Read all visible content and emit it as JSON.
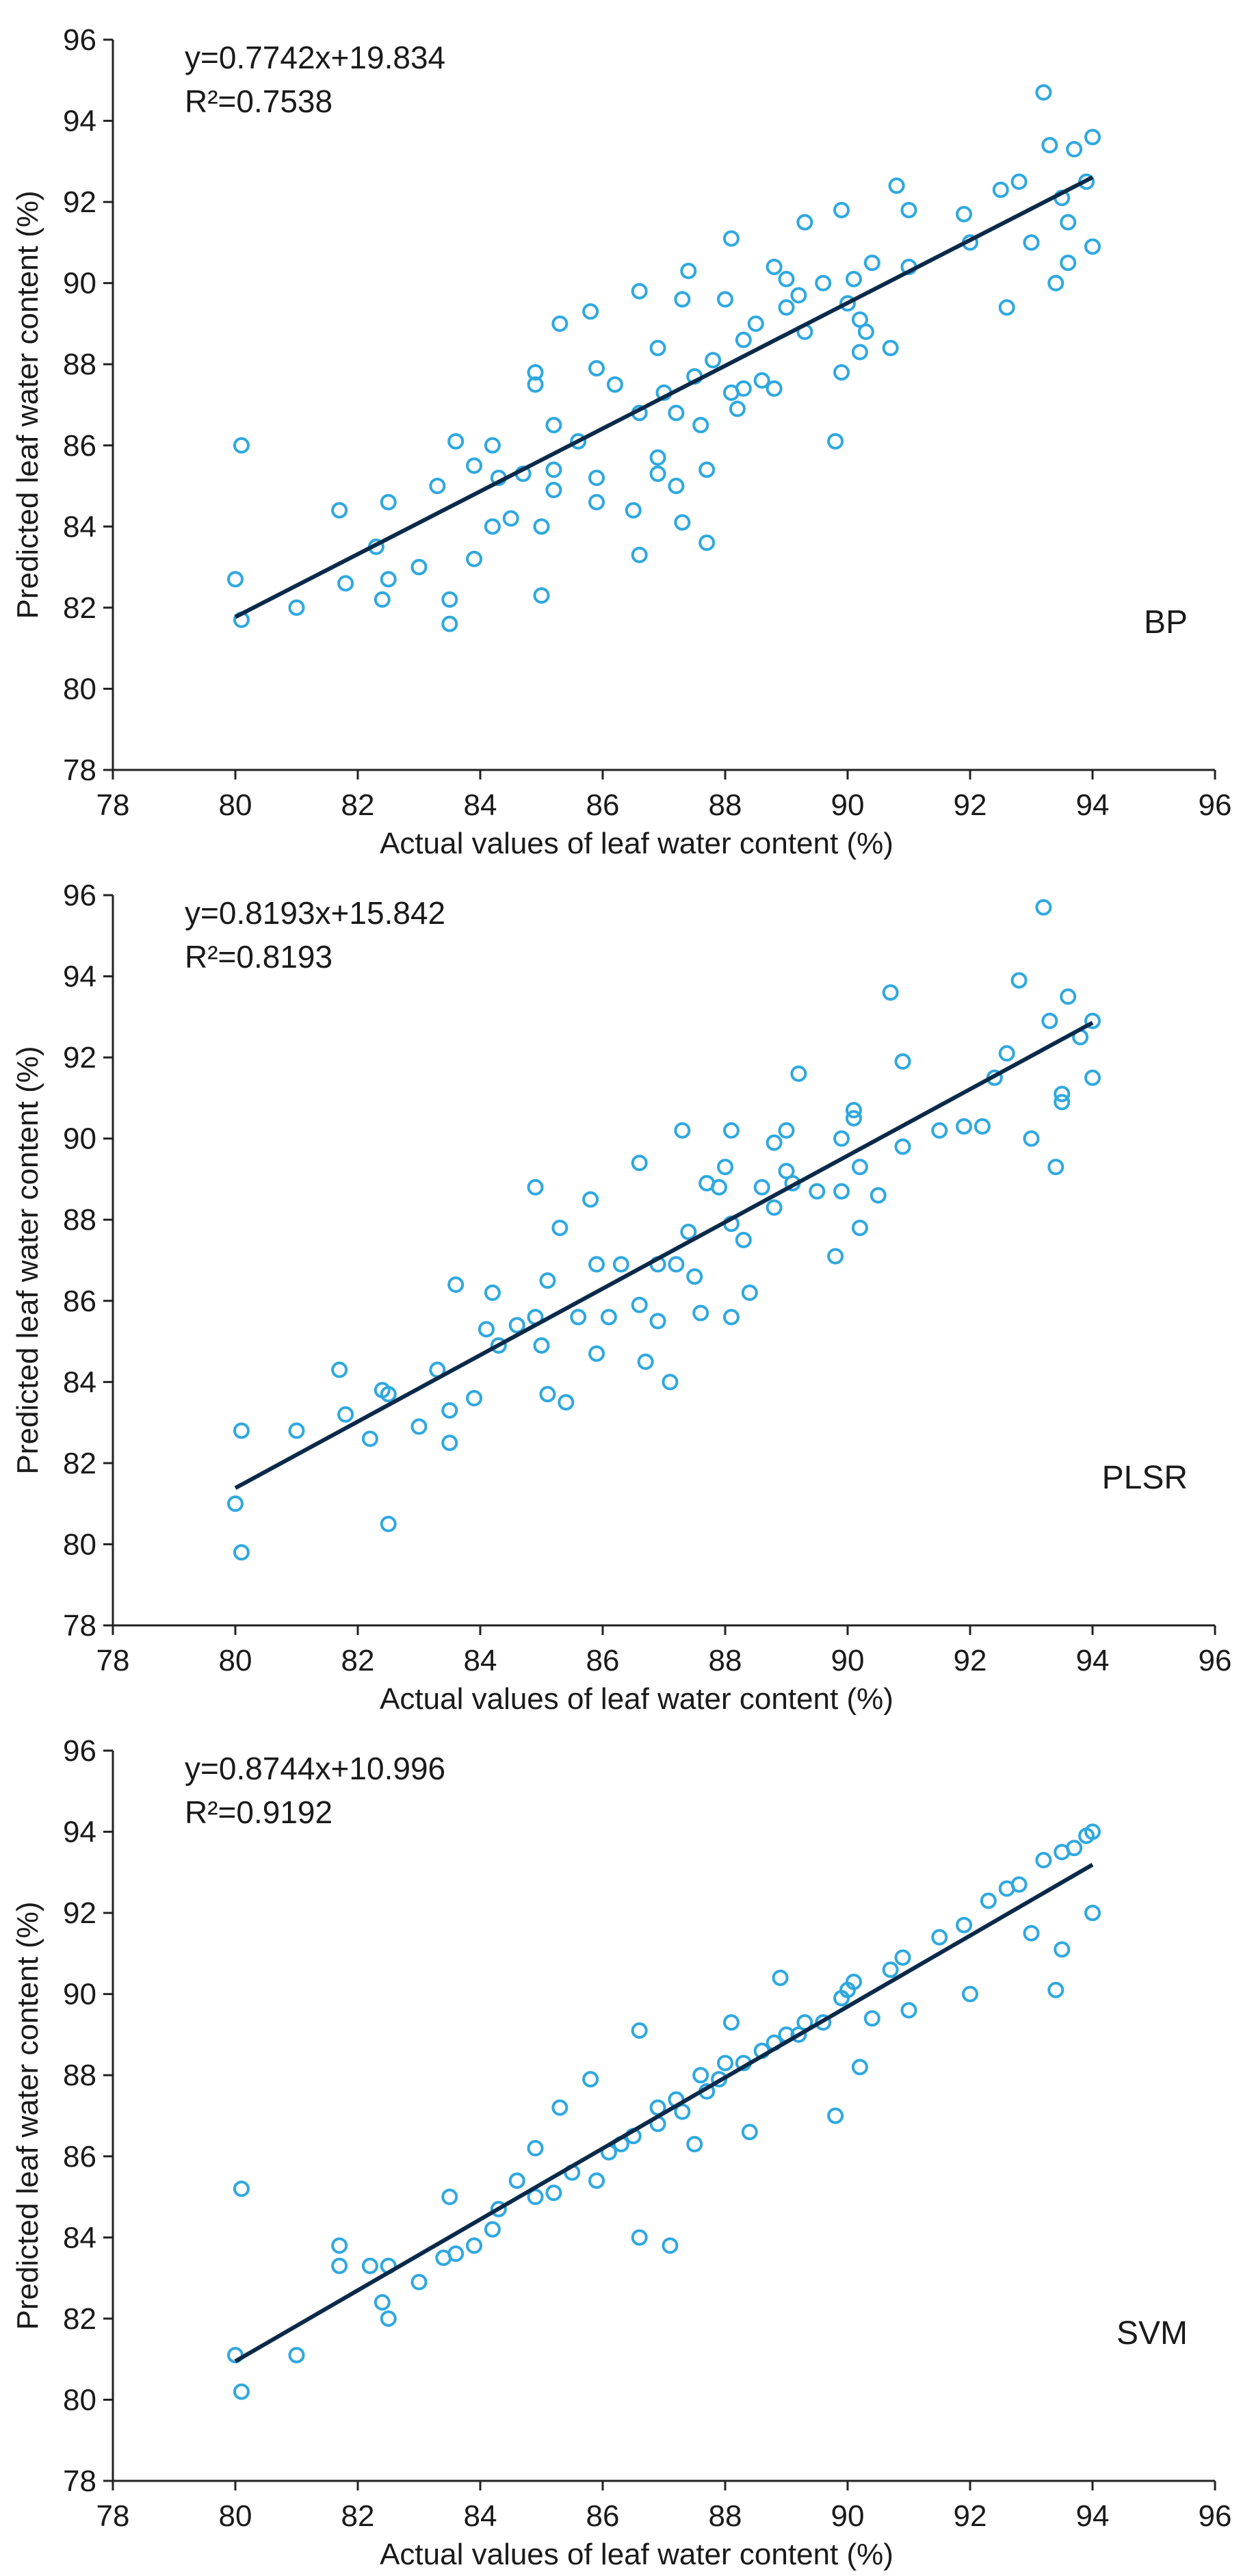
{
  "figure_description_panels": 3,
  "chart_data": [
    {
      "type": "scatter",
      "panel_label": "BP",
      "equation": "y=0.7742x+19.834",
      "r_squared": "R²=0.7538",
      "fit": {
        "slope": 0.7742,
        "intercept": 19.834,
        "x_range": [
          80,
          94
        ]
      },
      "xlabel": "Actual values of leaf water content (%)",
      "ylabel": "Predicted leaf water content (%)",
      "xlim": [
        78,
        96
      ],
      "ylim": [
        78,
        96
      ],
      "xticks": [
        "78",
        "80",
        "82",
        "84",
        "86",
        "88",
        "90",
        "92",
        "94",
        "96"
      ],
      "yticks": [
        "78",
        "80",
        "82",
        "84",
        "86",
        "88",
        "90",
        "92",
        "94",
        "96"
      ],
      "colors": {
        "points": "#2fa8df",
        "line": "#0b2a4a"
      },
      "points": [
        [
          80.0,
          82.7
        ],
        [
          80.1,
          86.0
        ],
        [
          80.1,
          81.7
        ],
        [
          81.0,
          82.0
        ],
        [
          81.7,
          84.4
        ],
        [
          81.8,
          82.6
        ],
        [
          82.3,
          83.5
        ],
        [
          82.4,
          82.2
        ],
        [
          82.5,
          84.6
        ],
        [
          82.5,
          82.7
        ],
        [
          83.0,
          83.0
        ],
        [
          83.3,
          85.0
        ],
        [
          83.5,
          82.2
        ],
        [
          83.5,
          81.6
        ],
        [
          83.6,
          86.1
        ],
        [
          83.9,
          85.5
        ],
        [
          83.9,
          83.2
        ],
        [
          84.2,
          86.0
        ],
        [
          84.2,
          84.0
        ],
        [
          84.3,
          85.2
        ],
        [
          84.5,
          84.2
        ],
        [
          84.7,
          85.3
        ],
        [
          84.9,
          87.8
        ],
        [
          84.9,
          87.5
        ],
        [
          85.0,
          84.0
        ],
        [
          85.0,
          82.3
        ],
        [
          85.2,
          86.5
        ],
        [
          85.2,
          85.4
        ],
        [
          85.2,
          84.9
        ],
        [
          85.3,
          89.0
        ],
        [
          85.6,
          86.1
        ],
        [
          85.8,
          89.3
        ],
        [
          85.9,
          85.2
        ],
        [
          85.9,
          84.6
        ],
        [
          85.9,
          87.9
        ],
        [
          86.2,
          87.5
        ],
        [
          86.5,
          84.4
        ],
        [
          86.6,
          89.8
        ],
        [
          86.6,
          86.8
        ],
        [
          86.6,
          83.3
        ],
        [
          86.9,
          88.4
        ],
        [
          86.9,
          85.7
        ],
        [
          86.9,
          85.3
        ],
        [
          87.0,
          87.3
        ],
        [
          87.2,
          86.8
        ],
        [
          87.2,
          85.0
        ],
        [
          87.3,
          84.1
        ],
        [
          87.3,
          89.6
        ],
        [
          87.4,
          90.3
        ],
        [
          87.5,
          87.7
        ],
        [
          87.6,
          86.5
        ],
        [
          87.7,
          85.4
        ],
        [
          87.7,
          83.6
        ],
        [
          87.8,
          88.1
        ],
        [
          88.0,
          89.6
        ],
        [
          88.1,
          87.3
        ],
        [
          88.1,
          91.1
        ],
        [
          88.2,
          86.9
        ],
        [
          88.3,
          88.6
        ],
        [
          88.3,
          87.4
        ],
        [
          88.5,
          89.0
        ],
        [
          88.6,
          87.6
        ],
        [
          88.8,
          90.4
        ],
        [
          88.8,
          87.4
        ],
        [
          89.0,
          90.1
        ],
        [
          89.0,
          89.4
        ],
        [
          89.2,
          89.7
        ],
        [
          89.3,
          91.5
        ],
        [
          89.3,
          88.8
        ],
        [
          89.6,
          90.0
        ],
        [
          89.8,
          86.1
        ],
        [
          89.9,
          87.8
        ],
        [
          89.9,
          91.8
        ],
        [
          90.0,
          89.5
        ],
        [
          90.1,
          90.1
        ],
        [
          90.2,
          88.3
        ],
        [
          90.2,
          89.1
        ],
        [
          90.3,
          88.8
        ],
        [
          90.4,
          90.5
        ],
        [
          90.7,
          88.4
        ],
        [
          90.8,
          92.4
        ],
        [
          91.0,
          91.8
        ],
        [
          91.0,
          90.4
        ],
        [
          91.9,
          91.7
        ],
        [
          92.0,
          91.0
        ],
        [
          92.5,
          92.3
        ],
        [
          92.6,
          89.4
        ],
        [
          92.8,
          92.5
        ],
        [
          93.0,
          91.0
        ],
        [
          93.2,
          94.7
        ],
        [
          93.3,
          93.4
        ],
        [
          93.4,
          90.0
        ],
        [
          93.5,
          92.1
        ],
        [
          93.6,
          91.5
        ],
        [
          93.6,
          90.5
        ],
        [
          93.7,
          93.3
        ],
        [
          93.9,
          92.5
        ],
        [
          94.0,
          93.6
        ],
        [
          94.0,
          90.9
        ]
      ]
    },
    {
      "type": "scatter",
      "panel_label": "PLSR",
      "equation": "y=0.8193x+15.842",
      "r_squared": "R²=0.8193",
      "fit": {
        "slope": 0.8193,
        "intercept": 15.842,
        "x_range": [
          80,
          94
        ]
      },
      "xlabel": "Actual values of leaf water content (%)",
      "ylabel": "Predicted leaf water content (%)",
      "xlim": [
        78,
        96
      ],
      "ylim": [
        78,
        96
      ],
      "xticks": [
        "78",
        "80",
        "82",
        "84",
        "86",
        "88",
        "90",
        "92",
        "94",
        "96"
      ],
      "yticks": [
        "78",
        "80",
        "82",
        "84",
        "86",
        "88",
        "90",
        "92",
        "94",
        "96"
      ],
      "colors": {
        "points": "#2fa8df",
        "line": "#0b2a4a"
      },
      "points": [
        [
          80.0,
          81.0
        ],
        [
          80.1,
          82.8
        ],
        [
          80.1,
          79.8
        ],
        [
          81.0,
          82.8
        ],
        [
          81.7,
          84.3
        ],
        [
          81.8,
          83.2
        ],
        [
          82.2,
          82.6
        ],
        [
          82.4,
          83.8
        ],
        [
          82.5,
          83.7
        ],
        [
          82.5,
          80.5
        ],
        [
          83.0,
          82.9
        ],
        [
          83.3,
          84.3
        ],
        [
          83.5,
          83.3
        ],
        [
          83.5,
          82.5
        ],
        [
          83.6,
          86.4
        ],
        [
          83.9,
          83.6
        ],
        [
          84.1,
          85.3
        ],
        [
          84.2,
          86.2
        ],
        [
          84.3,
          84.9
        ],
        [
          84.6,
          85.4
        ],
        [
          84.9,
          88.8
        ],
        [
          84.9,
          85.6
        ],
        [
          85.0,
          84.9
        ],
        [
          85.1,
          86.5
        ],
        [
          85.1,
          83.7
        ],
        [
          85.3,
          87.8
        ],
        [
          85.4,
          83.5
        ],
        [
          85.6,
          85.6
        ],
        [
          85.8,
          88.5
        ],
        [
          85.9,
          86.9
        ],
        [
          85.9,
          84.7
        ],
        [
          86.1,
          85.6
        ],
        [
          86.3,
          86.9
        ],
        [
          86.6,
          89.4
        ],
        [
          86.6,
          85.9
        ],
        [
          86.7,
          84.5
        ],
        [
          86.9,
          86.9
        ],
        [
          86.9,
          85.5
        ],
        [
          87.1,
          84.0
        ],
        [
          87.2,
          86.9
        ],
        [
          87.3,
          90.2
        ],
        [
          87.4,
          87.7
        ],
        [
          87.5,
          86.6
        ],
        [
          87.6,
          85.7
        ],
        [
          87.7,
          88.9
        ],
        [
          87.9,
          88.8
        ],
        [
          88.0,
          89.3
        ],
        [
          88.1,
          87.9
        ],
        [
          88.1,
          85.6
        ],
        [
          88.1,
          90.2
        ],
        [
          88.3,
          87.5
        ],
        [
          88.4,
          86.2
        ],
        [
          88.6,
          88.8
        ],
        [
          88.8,
          89.9
        ],
        [
          88.8,
          88.3
        ],
        [
          89.0,
          90.2
        ],
        [
          89.0,
          89.2
        ],
        [
          89.1,
          88.9
        ],
        [
          89.2,
          91.6
        ],
        [
          89.5,
          88.7
        ],
        [
          89.8,
          87.1
        ],
        [
          89.9,
          90.0
        ],
        [
          89.9,
          88.7
        ],
        [
          90.1,
          90.7
        ],
        [
          90.1,
          90.5
        ],
        [
          90.2,
          89.3
        ],
        [
          90.2,
          87.8
        ],
        [
          90.5,
          88.6
        ],
        [
          90.7,
          93.6
        ],
        [
          90.9,
          91.9
        ],
        [
          90.9,
          89.8
        ],
        [
          91.5,
          90.2
        ],
        [
          91.9,
          90.3
        ],
        [
          92.2,
          90.3
        ],
        [
          92.4,
          91.5
        ],
        [
          92.6,
          92.1
        ],
        [
          92.8,
          93.9
        ],
        [
          93.0,
          90.0
        ],
        [
          93.2,
          95.7
        ],
        [
          93.3,
          92.9
        ],
        [
          93.4,
          89.3
        ],
        [
          93.5,
          91.1
        ],
        [
          93.5,
          90.9
        ],
        [
          93.6,
          93.5
        ],
        [
          93.8,
          92.5
        ],
        [
          94.0,
          92.9
        ],
        [
          94.0,
          91.5
        ]
      ]
    },
    {
      "type": "scatter",
      "panel_label": "SVM",
      "equation": "y=0.8744x+10.996",
      "r_squared": "R²=0.9192",
      "fit": {
        "slope": 0.8744,
        "intercept": 10.996,
        "x_range": [
          80,
          94
        ]
      },
      "xlabel": "Actual values of leaf water content (%)",
      "ylabel": "Predicted leaf water content (%)",
      "xlim": [
        78,
        96
      ],
      "ylim": [
        78,
        96
      ],
      "xticks": [
        "78",
        "80",
        "82",
        "84",
        "86",
        "88",
        "90",
        "92",
        "94",
        "96"
      ],
      "yticks": [
        "78",
        "80",
        "82",
        "84",
        "86",
        "88",
        "90",
        "92",
        "94",
        "96"
      ],
      "colors": {
        "points": "#2fa8df",
        "line": "#0b2a4a"
      },
      "points": [
        [
          80.0,
          81.1
        ],
        [
          80.1,
          85.2
        ],
        [
          80.1,
          80.2
        ],
        [
          81.0,
          81.1
        ],
        [
          81.7,
          83.8
        ],
        [
          81.7,
          83.3
        ],
        [
          82.2,
          83.3
        ],
        [
          82.4,
          82.4
        ],
        [
          82.5,
          82.0
        ],
        [
          82.5,
          83.3
        ],
        [
          83.0,
          82.9
        ],
        [
          83.4,
          83.5
        ],
        [
          83.5,
          85.0
        ],
        [
          83.6,
          83.6
        ],
        [
          83.9,
          83.8
        ],
        [
          84.2,
          84.2
        ],
        [
          84.3,
          84.7
        ],
        [
          84.6,
          85.4
        ],
        [
          84.9,
          85.0
        ],
        [
          84.9,
          86.2
        ],
        [
          85.2,
          85.1
        ],
        [
          85.3,
          87.2
        ],
        [
          85.5,
          85.6
        ],
        [
          85.8,
          87.9
        ],
        [
          85.9,
          85.4
        ],
        [
          86.1,
          86.1
        ],
        [
          86.3,
          86.3
        ],
        [
          86.5,
          86.5
        ],
        [
          86.6,
          89.1
        ],
        [
          86.6,
          84.0
        ],
        [
          86.9,
          86.8
        ],
        [
          86.9,
          87.2
        ],
        [
          87.1,
          83.8
        ],
        [
          87.2,
          87.4
        ],
        [
          87.3,
          87.1
        ],
        [
          87.5,
          86.3
        ],
        [
          87.6,
          88.0
        ],
        [
          87.7,
          87.6
        ],
        [
          87.9,
          87.9
        ],
        [
          88.0,
          88.3
        ],
        [
          88.1,
          89.3
        ],
        [
          88.3,
          88.3
        ],
        [
          88.4,
          86.6
        ],
        [
          88.6,
          88.6
        ],
        [
          88.8,
          88.8
        ],
        [
          88.9,
          90.4
        ],
        [
          89.0,
          89.0
        ],
        [
          89.2,
          89.0
        ],
        [
          89.3,
          89.3
        ],
        [
          89.6,
          89.3
        ],
        [
          89.8,
          87.0
        ],
        [
          89.9,
          89.9
        ],
        [
          90.0,
          90.1
        ],
        [
          90.1,
          90.3
        ],
        [
          90.2,
          88.2
        ],
        [
          90.4,
          89.4
        ],
        [
          90.7,
          90.6
        ],
        [
          90.9,
          90.9
        ],
        [
          91.0,
          89.6
        ],
        [
          91.5,
          91.4
        ],
        [
          91.9,
          91.7
        ],
        [
          92.0,
          90.0
        ],
        [
          92.3,
          92.3
        ],
        [
          92.6,
          92.6
        ],
        [
          92.8,
          92.7
        ],
        [
          93.0,
          91.5
        ],
        [
          93.2,
          93.3
        ],
        [
          93.4,
          90.1
        ],
        [
          93.5,
          93.5
        ],
        [
          93.5,
          91.1
        ],
        [
          93.7,
          93.6
        ],
        [
          93.9,
          93.9
        ],
        [
          94.0,
          94.0
        ],
        [
          94.0,
          92.0
        ]
      ]
    }
  ]
}
